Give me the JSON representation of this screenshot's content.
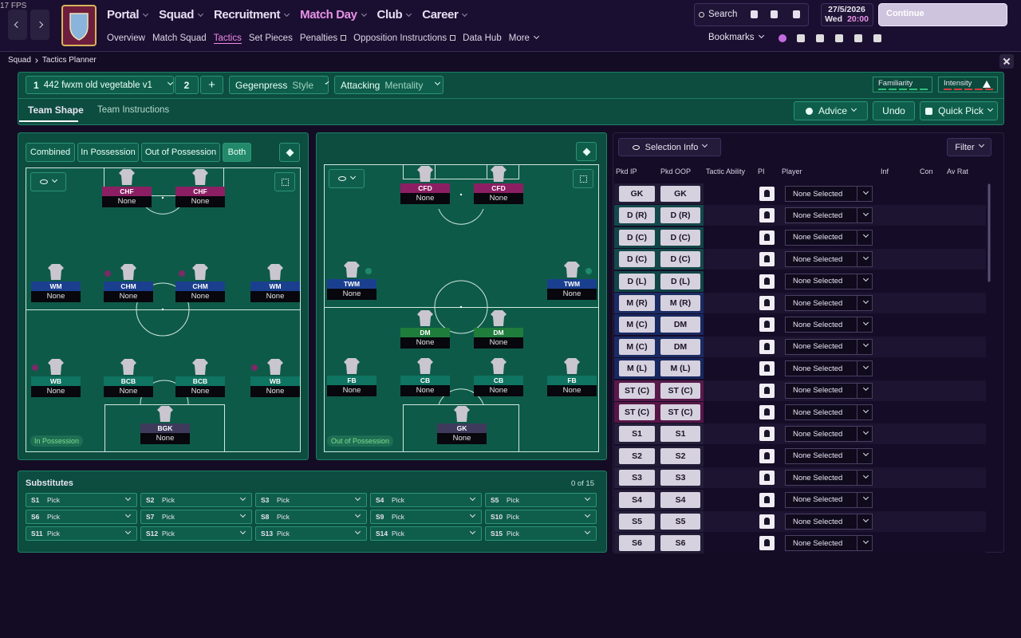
{
  "fps": "17 FPS",
  "nav": {
    "main": [
      "Portal",
      "Squad",
      "Recruitment",
      "Match Day",
      "Club",
      "Career"
    ],
    "sub": [
      "Overview",
      "Match Squad",
      "Tactics",
      "Set Pieces",
      "Penalties",
      "Opposition Instructions",
      "Data Hub",
      "More"
    ]
  },
  "search": "Search",
  "date": {
    "date": "27/5/2026",
    "day": "Wed",
    "time": "20:00"
  },
  "continue": "Continue",
  "bookmarks": "Bookmarks",
  "breadcrumb": [
    "Squad",
    "Tactics Planner"
  ],
  "toolbar": {
    "tactic_number": "1",
    "tactic_name": "442 fwxm old vegetable v1",
    "slot2": "2",
    "add": "+",
    "style": {
      "value": "Gegenpress",
      "label": "Style"
    },
    "mentality": {
      "value": "Attacking",
      "label": "Mentality"
    },
    "familiarity": "Familiarity",
    "intensity": "Intensity"
  },
  "tabs": [
    "Team Shape",
    "Team Instructions"
  ],
  "actions": [
    "Advice",
    "Undo",
    "Quick Pick"
  ],
  "phase_buttons": [
    "Combined",
    "In Possession",
    "Out of Possession",
    "Both"
  ],
  "in_possession": {
    "label": "In Possession",
    "players": [
      {
        "role": "CHF",
        "name": "None"
      },
      {
        "role": "CHF",
        "name": "None"
      },
      {
        "role": "WM",
        "name": "None"
      },
      {
        "role": "CHM",
        "name": "None"
      },
      {
        "role": "CHM",
        "name": "None"
      },
      {
        "role": "WM",
        "name": "None"
      },
      {
        "role": "WB",
        "name": "None"
      },
      {
        "role": "BCB",
        "name": "None"
      },
      {
        "role": "BCB",
        "name": "None"
      },
      {
        "role": "WB",
        "name": "None"
      },
      {
        "role": "BGK",
        "name": "None"
      }
    ]
  },
  "out_of_possession": {
    "label": "Out of Possession",
    "players": [
      {
        "role": "CFD",
        "name": "None"
      },
      {
        "role": "CFD",
        "name": "None"
      },
      {
        "role": "TWM",
        "name": "None"
      },
      {
        "role": "TWM",
        "name": "None"
      },
      {
        "role": "DM",
        "name": "None"
      },
      {
        "role": "DM",
        "name": "None"
      },
      {
        "role": "FB",
        "name": "None"
      },
      {
        "role": "CB",
        "name": "None"
      },
      {
        "role": "CB",
        "name": "None"
      },
      {
        "role": "FB",
        "name": "None"
      },
      {
        "role": "GK",
        "name": "None"
      }
    ]
  },
  "substitutes": {
    "title": "Substitutes",
    "count": "0 of 15",
    "slots": [
      {
        "slot": "S1",
        "value": "Pick"
      },
      {
        "slot": "S2",
        "value": "Pick"
      },
      {
        "slot": "S3",
        "value": "Pick"
      },
      {
        "slot": "S4",
        "value": "Pick"
      },
      {
        "slot": "S5",
        "value": "Pick"
      },
      {
        "slot": "S6",
        "value": "Pick"
      },
      {
        "slot": "S7",
        "value": "Pick"
      },
      {
        "slot": "S8",
        "value": "Pick"
      },
      {
        "slot": "S9",
        "value": "Pick"
      },
      {
        "slot": "S10",
        "value": "Pick"
      },
      {
        "slot": "S11",
        "value": "Pick"
      },
      {
        "slot": "S12",
        "value": "Pick"
      },
      {
        "slot": "S13",
        "value": "Pick"
      },
      {
        "slot": "S14",
        "value": "Pick"
      },
      {
        "slot": "S15",
        "value": "Pick"
      }
    ]
  },
  "selection": {
    "button": "Selection Info",
    "filter": "Filter",
    "columns": [
      "Pkd IP",
      "Pkd OOP",
      "Tactic Ability",
      "PI",
      "Player",
      "Inf",
      "Con",
      "Av Rat"
    ],
    "rows": [
      {
        "ip": "GK",
        "oop": "GK",
        "player": "None Selected"
      },
      {
        "ip": "D (R)",
        "oop": "D (R)",
        "player": "None Selected"
      },
      {
        "ip": "D (C)",
        "oop": "D (C)",
        "player": "None Selected"
      },
      {
        "ip": "D (C)",
        "oop": "D (C)",
        "player": "None Selected"
      },
      {
        "ip": "D (L)",
        "oop": "D (L)",
        "player": "None Selected"
      },
      {
        "ip": "M (R)",
        "oop": "M (R)",
        "player": "None Selected"
      },
      {
        "ip": "M (C)",
        "oop": "DM",
        "player": "None Selected"
      },
      {
        "ip": "M (C)",
        "oop": "DM",
        "player": "None Selected"
      },
      {
        "ip": "M (L)",
        "oop": "M (L)",
        "player": "None Selected"
      },
      {
        "ip": "ST (C)",
        "oop": "ST (C)",
        "player": "None Selected"
      },
      {
        "ip": "ST (C)",
        "oop": "ST (C)",
        "player": "None Selected"
      },
      {
        "ip": "S1",
        "oop": "S1",
        "player": "None Selected"
      },
      {
        "ip": "S2",
        "oop": "S2",
        "player": "None Selected"
      },
      {
        "ip": "S3",
        "oop": "S3",
        "player": "None Selected"
      },
      {
        "ip": "S4",
        "oop": "S4",
        "player": "None Selected"
      },
      {
        "ip": "S5",
        "oop": "S5",
        "player": "None Selected"
      },
      {
        "ip": "S6",
        "oop": "S6",
        "player": "None Selected"
      }
    ]
  }
}
